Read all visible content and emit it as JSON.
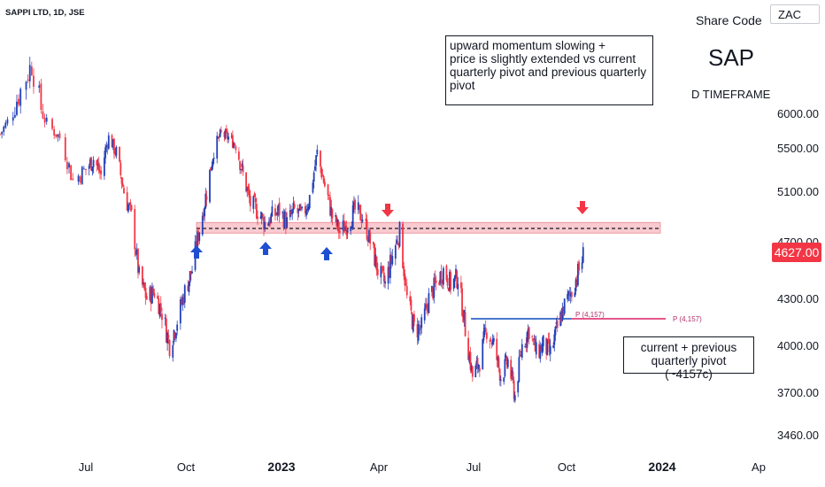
{
  "header": {
    "ticker": "SAPPI LTD, 1D, JSE",
    "share_code_label": "Share Code",
    "share_code": "SAP",
    "timeframe": "D TIMEFRAME",
    "currency": "ZAC"
  },
  "annotations": {
    "momentum_note": "upward momentum slowing +\nprice is slightly extended vs current quarterly pivot and previous quarterly pivot",
    "pivot_note": "current + previous quarterly pivot (~4157c)",
    "pivot_label_left": "P (4,157)",
    "pivot_label_right": "P (4,157)"
  },
  "current_price": "4627.00",
  "colors": {
    "up": "#2240b8",
    "down": "#f23645",
    "zone": "#f7b8bf",
    "pivot_line": "#3166c9",
    "pivot_line_right": "#e0407a"
  },
  "chart_data": {
    "type": "candlestick",
    "title": "SAPPI LTD, 1D, JSE",
    "x_ticks": [
      "Jul",
      "Oct",
      "2023",
      "Apr",
      "Jul",
      "Oct",
      "2024",
      "Ap"
    ],
    "y_ticks": [
      "6000.00",
      "5500.00",
      "5100.00",
      "4700.00",
      "4300.00",
      "4000.00",
      "3700.00",
      "3460.00"
    ],
    "y_ticks_numeric": [
      6000,
      5500,
      5100,
      4700,
      4300,
      4000,
      3700,
      3460
    ],
    "ylim": [
      3380,
      6550
    ],
    "resistance_zone": [
      4770,
      4855
    ],
    "resistance_level": 4808,
    "pivot_level": 4157,
    "last_close": 4627,
    "series_path_close": [
      [
        "2022-05-16",
        5700
      ],
      [
        "2022-05-25",
        6100
      ],
      [
        "2022-06-02",
        6350
      ],
      [
        "2022-06-10",
        5850
      ],
      [
        "2022-06-17",
        5650
      ],
      [
        "2022-06-24",
        5200
      ],
      [
        "2022-07-01",
        5300
      ],
      [
        "2022-07-08",
        5400
      ],
      [
        "2022-07-15",
        5250
      ],
      [
        "2022-07-22",
        5650
      ],
      [
        "2022-07-29",
        5450
      ],
      [
        "2022-08-05",
        5100
      ],
      [
        "2022-08-12",
        4900
      ],
      [
        "2022-08-19",
        4450
      ],
      [
        "2022-08-26",
        4300
      ],
      [
        "2022-09-02",
        4350
      ],
      [
        "2022-09-09",
        4200
      ],
      [
        "2022-09-16",
        4000
      ],
      [
        "2022-09-23",
        4150
      ],
      [
        "2022-09-30",
        4350
      ],
      [
        "2022-10-07",
        4500
      ],
      [
        "2022-10-14",
        4800
      ],
      [
        "2022-10-21",
        5100
      ],
      [
        "2022-10-28",
        5500
      ],
      [
        "2022-11-04",
        5700
      ],
      [
        "2022-11-11",
        5650
      ],
      [
        "2022-11-18",
        5550
      ],
      [
        "2022-11-25",
        5250
      ],
      [
        "2022-12-02",
        5000
      ],
      [
        "2022-12-09",
        4950
      ],
      [
        "2022-12-16",
        4850
      ],
      [
        "2022-12-23",
        4900
      ],
      [
        "2022-12-30",
        4950
      ],
      [
        "2023-01-06",
        4850
      ],
      [
        "2023-01-13",
        4950
      ],
      [
        "2023-01-20",
        4900
      ],
      [
        "2023-01-27",
        5050
      ],
      [
        "2023-02-03",
        5450
      ],
      [
        "2023-02-10",
        5150
      ],
      [
        "2023-02-17",
        4900
      ],
      [
        "2023-02-24",
        4780
      ],
      [
        "2023-03-03",
        4850
      ],
      [
        "2023-03-10",
        4950
      ],
      [
        "2023-03-17",
        4900
      ],
      [
        "2023-03-24",
        4700
      ],
      [
        "2023-03-31",
        4500
      ],
      [
        "2023-04-07",
        4400
      ],
      [
        "2023-04-14",
        4600
      ],
      [
        "2023-04-21",
        4780
      ],
      [
        "2023-04-28",
        4300
      ],
      [
        "2023-05-05",
        4100
      ],
      [
        "2023-05-12",
        4100
      ],
      [
        "2023-05-19",
        4300
      ],
      [
        "2023-05-26",
        4400
      ],
      [
        "2023-06-02",
        4500
      ],
      [
        "2023-06-09",
        4400
      ],
      [
        "2023-06-16",
        4450
      ],
      [
        "2023-06-23",
        4100
      ],
      [
        "2023-06-30",
        3800
      ],
      [
        "2023-07-07",
        3900
      ],
      [
        "2023-07-14",
        4100
      ],
      [
        "2023-07-21",
        4000
      ],
      [
        "2023-07-28",
        3800
      ],
      [
        "2023-08-04",
        3900
      ],
      [
        "2023-08-11",
        3680
      ],
      [
        "2023-08-18",
        4000
      ],
      [
        "2023-08-25",
        4100
      ],
      [
        "2023-09-01",
        3950
      ],
      [
        "2023-09-08",
        4000
      ],
      [
        "2023-09-15",
        3950
      ],
      [
        "2023-09-22",
        4100
      ],
      [
        "2023-09-29",
        4250
      ],
      [
        "2023-10-06",
        4350
      ],
      [
        "2023-10-13",
        4500
      ],
      [
        "2023-10-18",
        4627
      ]
    ]
  }
}
